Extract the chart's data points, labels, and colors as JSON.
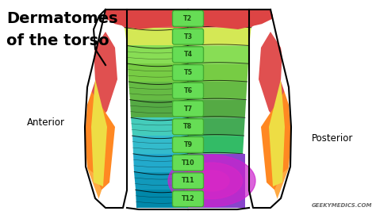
{
  "title_line1": "Dermatomes",
  "title_line2": "of the torso",
  "labels": [
    "T2",
    "T3",
    "T4",
    "T5",
    "T6",
    "T7",
    "T8",
    "T9",
    "T10",
    "T11",
    "T12"
  ],
  "anterior_label": "Anterior",
  "posterior_label": "Posterior",
  "watermark": "GEEKYMEDICS.COM",
  "bg_color": "#ffffff",
  "pill_color": "#66dd55",
  "pill_edge_color": "#44aa33",
  "pill_text_color": "#1a4a10",
  "band_colors_ant": [
    "#e05555",
    "#d4e855",
    "#88dd55",
    "#77cc44",
    "#66bb44",
    "#55aa44",
    "#44ccbb",
    "#33bbcc",
    "#22aacc",
    "#1199bb",
    "#0088aa"
  ],
  "band_colors_post": [
    "#e05555",
    "#d4e855",
    "#88dd55",
    "#77cc44",
    "#66bb44",
    "#55aa44",
    "#44aa55",
    "#33bb66",
    "#ff66aa",
    "#ee55cc",
    "#aa44dd"
  ],
  "arm_left_colors": [
    "#e05555",
    "#ffa030",
    "#ffee55",
    "#ffa030",
    "#ff8820"
  ],
  "arm_right_colors": [
    "#e05555",
    "#ffa030",
    "#ffee55",
    "#ffa030",
    "#ff8820"
  ]
}
